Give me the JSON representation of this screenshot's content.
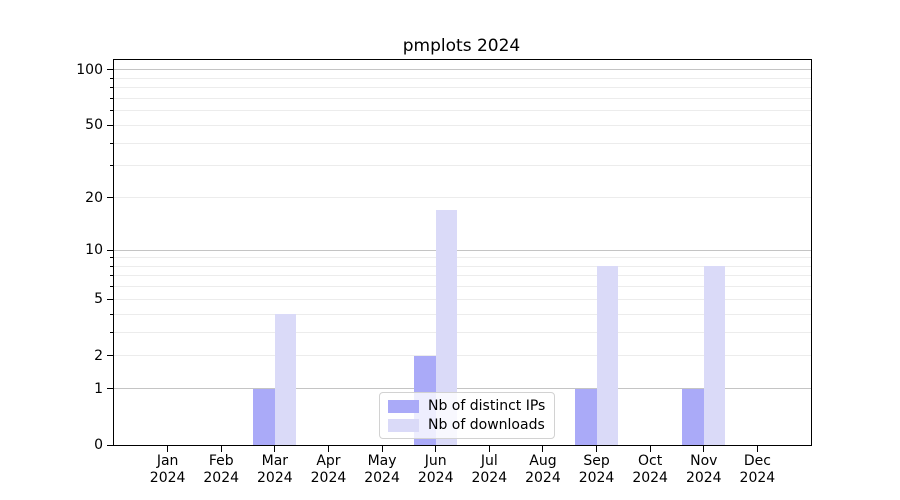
{
  "chart_data": {
    "type": "bar",
    "title": "pmplots 2024",
    "categories": [
      "Jan",
      "Feb",
      "Mar",
      "Apr",
      "May",
      "Jun",
      "Jul",
      "Aug",
      "Sep",
      "Oct",
      "Nov",
      "Dec"
    ],
    "category_year": "2024",
    "series": [
      {
        "name": "Nb of distinct IPs",
        "color": "#aaaaf8",
        "values": [
          0,
          0,
          1,
          0,
          0,
          2,
          0,
          0,
          1,
          0,
          1,
          0
        ]
      },
      {
        "name": "Nb of downloads",
        "color": "#dadaf8",
        "values": [
          0,
          0,
          4,
          0,
          0,
          17,
          0,
          0,
          8,
          0,
          8,
          0
        ]
      }
    ],
    "yscale": "log1p",
    "yticks": [
      0,
      1,
      2,
      5,
      10,
      20,
      50,
      100
    ],
    "ylim": [
      0,
      113
    ],
    "grid": "horizontal; major lines at 1,10,100; minor lines at 2-9 and 20-90",
    "legend_position": "bottom-center"
  },
  "colors": {
    "major_grid": "#c4c4c4",
    "minor_grid": "#ececec",
    "axis": "#000000",
    "background": "#ffffff"
  }
}
